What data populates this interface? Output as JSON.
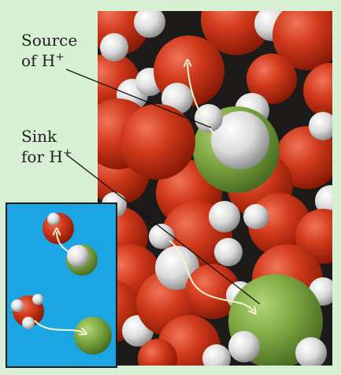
{
  "labels": {
    "source": {
      "line1": "Source",
      "line2_prefix": "of H",
      "charge": "+"
    },
    "sink": {
      "line1": "Sink",
      "line2_prefix": "for H",
      "charge": "+"
    }
  },
  "colors": {
    "background": "#d7efd3",
    "panel_dark": "#1d1a1a",
    "inset_background": "#1ba6e3",
    "oxygen": "#cc2a10",
    "hydrogen": "#e8e8e8",
    "hydronium_center": "#7aa63e"
  }
}
